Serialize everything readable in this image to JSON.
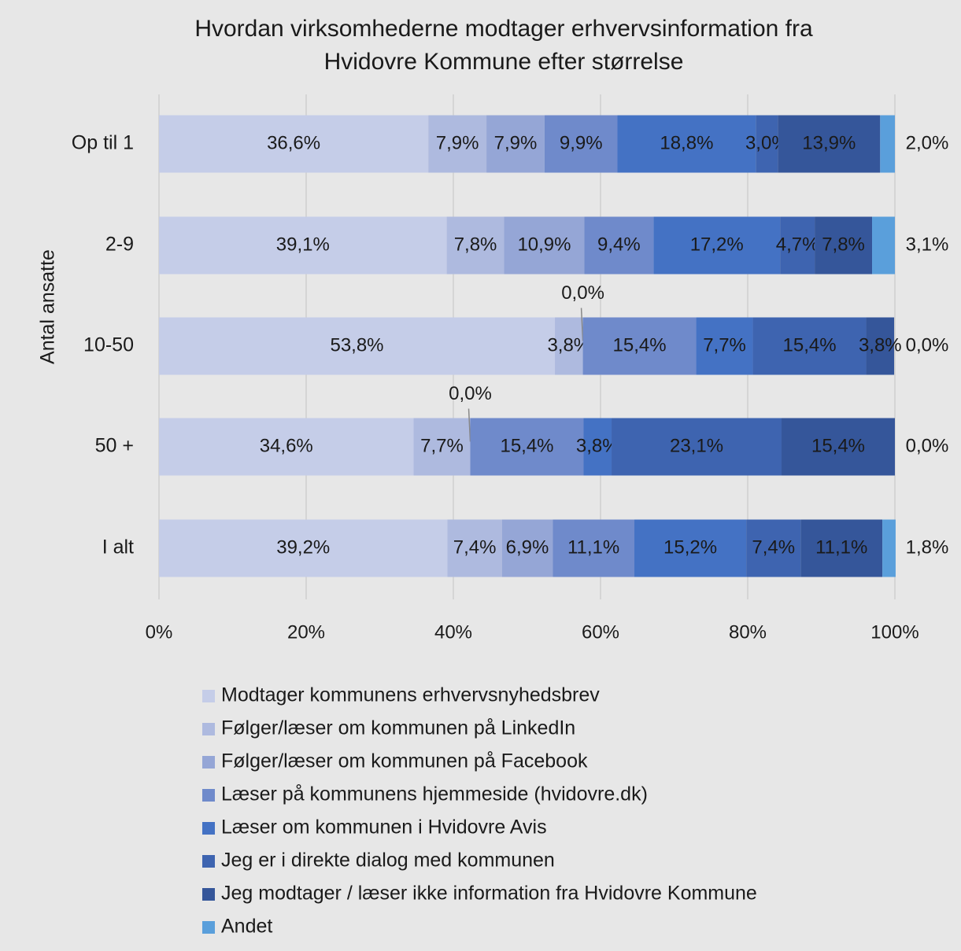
{
  "chart_data": {
    "type": "stacked_barh",
    "title": "Hvordan virksomhederne modtager erhvervsinformation fra",
    "subtitle": "Hvidovre Kommune efter størrelse",
    "y_label": "Antal ansatte",
    "categories": [
      "Op til 1",
      "2-9",
      "10-50",
      "50 +",
      "I alt"
    ],
    "xlim": [
      0,
      100
    ],
    "xticks": [
      {
        "value": 0,
        "label": "0%"
      },
      {
        "value": 20,
        "label": "20%"
      },
      {
        "value": 40,
        "label": "40%"
      },
      {
        "value": 60,
        "label": "60%"
      },
      {
        "value": 80,
        "label": "80%"
      },
      {
        "value": 100,
        "label": "100%"
      }
    ],
    "grid": true,
    "legend": "bottom",
    "series": [
      {
        "name": "Modtager kommunens erhvervsnyhedsbrev",
        "color": "#c5cde8",
        "values": [
          36.6,
          39.1,
          53.8,
          34.6,
          39.2
        ],
        "value_labels": [
          "36,6%",
          "39,1%",
          "53,8%",
          "34,6%",
          "39,2%"
        ]
      },
      {
        "name": "Følger/læser om kommunen på LinkedIn",
        "color": "#aebadf",
        "values": [
          7.9,
          7.8,
          3.8,
          7.7,
          7.4
        ],
        "value_labels": [
          "7,9%",
          "7,8%",
          "3,8%",
          "7,7%",
          "7,4%"
        ]
      },
      {
        "name": "Følger/læser om kommunen på Facebook",
        "color": "#95a6d6",
        "values": [
          7.9,
          10.9,
          0.0,
          0.0,
          6.9
        ],
        "value_labels": [
          "7,9%",
          "10,9%",
          "0,0%",
          "0,0%",
          "6,9%"
        ]
      },
      {
        "name": "Læser på kommunens hjemmeside (hvidovre.dk)",
        "color": "#6f8acb",
        "values": [
          9.9,
          9.4,
          15.4,
          15.4,
          11.1
        ],
        "value_labels": [
          "9,9%",
          "9,4%",
          "15,4%",
          "15,4%",
          "11,1%"
        ]
      },
      {
        "name": "Læser om kommunen i Hvidovre Avis",
        "color": "#4472c4",
        "values": [
          18.8,
          17.2,
          7.7,
          3.8,
          15.2
        ],
        "value_labels": [
          "18,8%",
          "17,2%",
          "7,7%",
          "3,8%",
          "15,2%"
        ]
      },
      {
        "name": "Jeg er i direkte dialog med kommunen",
        "color": "#3e64b0",
        "values": [
          3.0,
          4.7,
          15.4,
          23.1,
          7.4
        ],
        "value_labels": [
          "3,0%",
          "4,7%",
          "15,4%",
          "23,1%",
          "7,4%"
        ]
      },
      {
        "name": "Jeg modtager / læser ikke information fra Hvidovre Kommune",
        "color": "#35569a",
        "values": [
          13.9,
          7.8,
          3.8,
          15.4,
          11.1
        ],
        "value_labels": [
          "13,9%",
          "7,8%",
          "3,8%",
          "15,4%",
          "11,1%"
        ]
      },
      {
        "name": "Andet",
        "color": "#5a9fdb",
        "values": [
          2.0,
          3.1,
          0.0,
          0.0,
          1.8
        ],
        "value_labels": [
          "2,0%",
          "3,1%",
          "0,0%",
          "0,0%",
          "1,8%"
        ]
      }
    ]
  }
}
